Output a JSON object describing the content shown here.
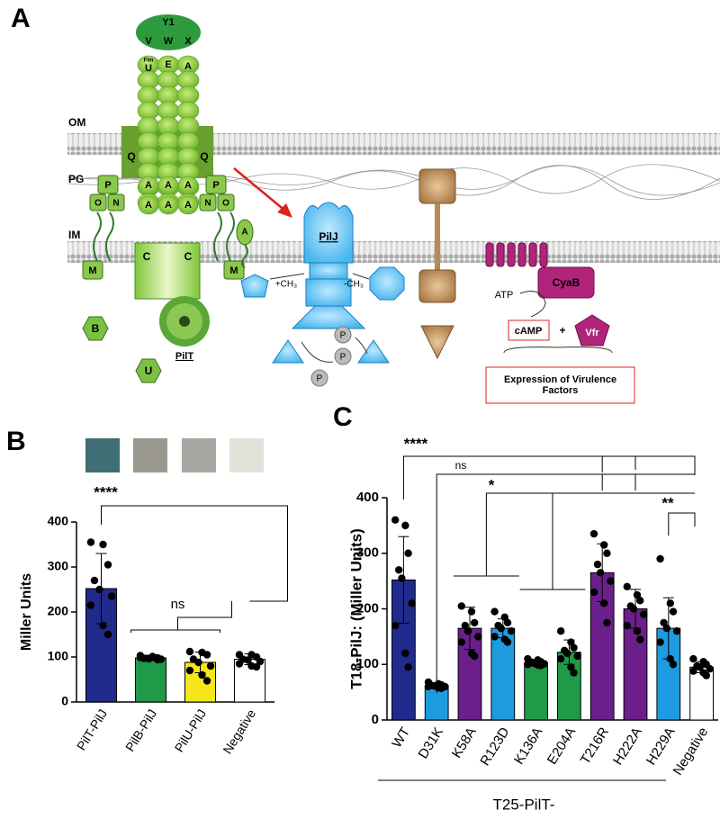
{
  "diagram": {
    "panel_label": "A",
    "membranes": [
      "OM",
      "PG",
      "IM"
    ],
    "pilus_labels": [
      "Y1",
      "V",
      "W",
      "X",
      "Fim",
      "U",
      "E",
      "A"
    ],
    "secretin_labels": [
      "Q",
      "Q"
    ],
    "alignment_labels": [
      "P",
      "O",
      "N",
      "P",
      "N",
      "O"
    ],
    "minor_labels": [
      "A",
      "A",
      "A",
      "A",
      "A",
      "A"
    ],
    "motor_labels": [
      "C",
      "C",
      "M",
      "M"
    ],
    "free_labels": [
      "A",
      "B",
      "U"
    ],
    "pilt": "PilT",
    "pilj": "PilJ",
    "methyl": [
      "+CH₃",
      "-CH₃"
    ],
    "phospho": [
      "P",
      "P",
      "P"
    ],
    "cyab": "CyaB",
    "atp": "ATP",
    "camp": "cAMP",
    "plus": "+",
    "vfr": "Vfr",
    "output": "Expression of Virulence Factors"
  },
  "chart_data": [
    {
      "type": "bar",
      "panel_label": "B",
      "y_label": "Miller Units",
      "categories": [
        "PilT-PilJ",
        "PilB-PilJ",
        "PilU-PilJ",
        "Negative"
      ],
      "values": [
        252,
        98,
        88,
        95
      ],
      "errors": [
        78,
        6,
        23,
        12
      ],
      "colors": [
        "#1f2a8a",
        "#1e9a48",
        "#f5e61c",
        "#ffffff"
      ],
      "points": [
        [
          355,
          350,
          305,
          270,
          250,
          235,
          215,
          170,
          150
        ],
        [
          103,
          100,
          98,
          97,
          96,
          95,
          99,
          101,
          94
        ],
        [
          112,
          110,
          105,
          95,
          88,
          80,
          70,
          60,
          47
        ],
        [
          105,
          105,
          100,
          95,
          93,
          90,
          85,
          80,
          78
        ]
      ],
      "ylim": [
        0,
        400
      ],
      "yticks": [
        0,
        100,
        200,
        300,
        400
      ],
      "annotations": [
        "****",
        "ns"
      ]
    },
    {
      "type": "bar",
      "panel_label": "C",
      "y_label": "T18-PilJ: (Miller Units)",
      "x_label": "T25-PilT-",
      "categories": [
        "WT",
        "D31K",
        "K58A",
        "R123D",
        "K136A",
        "E204A",
        "T216R",
        "H222A",
        "H229A",
        "Negative"
      ],
      "values": [
        252,
        62,
        165,
        165,
        103,
        122,
        265,
        200,
        165,
        95
      ],
      "errors": [
        78,
        5,
        38,
        17,
        6,
        22,
        52,
        35,
        55,
        10
      ],
      "colors": [
        "#1f2a8a",
        "#1e9be0",
        "#6a1f8a",
        "#1e9be0",
        "#1e9a48",
        "#1e9a48",
        "#6a1f8a",
        "#6a1f8a",
        "#1e9be0",
        "#ffffff"
      ],
      "points": [
        [
          360,
          350,
          300,
          270,
          255,
          210,
          170,
          120,
          95
        ],
        [
          68,
          65,
          63,
          62,
          61,
          60,
          60,
          58,
          57
        ],
        [
          205,
          195,
          175,
          170,
          160,
          150,
          140,
          120,
          115
        ],
        [
          195,
          185,
          175,
          170,
          165,
          160,
          150,
          145,
          140
        ],
        [
          110,
          108,
          105,
          104,
          102,
          101,
          100,
          99,
          98
        ],
        [
          160,
          140,
          130,
          125,
          120,
          115,
          110,
          95,
          85
        ],
        [
          335,
          315,
          300,
          280,
          265,
          250,
          230,
          210,
          175
        ],
        [
          240,
          225,
          215,
          205,
          200,
          190,
          170,
          160,
          145
        ],
        [
          290,
          210,
          195,
          175,
          165,
          160,
          140,
          110,
          100
        ],
        [
          110,
          105,
          100,
          97,
          95,
          92,
          88,
          85,
          80
        ]
      ],
      "ylim": [
        0,
        400
      ],
      "yticks": [
        0,
        100,
        200,
        300,
        400
      ],
      "annotations": [
        "****",
        "ns",
        "*",
        "**"
      ]
    }
  ]
}
